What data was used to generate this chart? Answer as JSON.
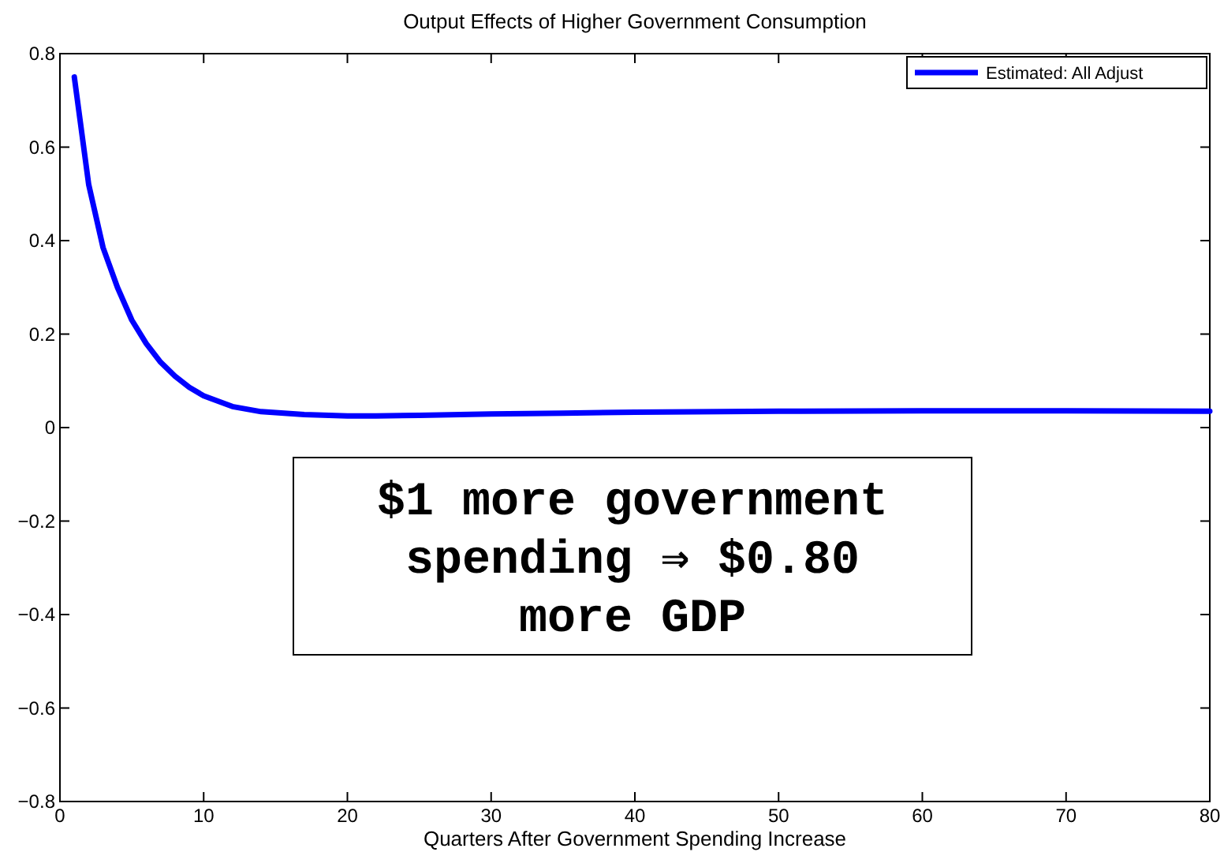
{
  "chart_data": {
    "type": "line",
    "title": "Output Effects of Higher Government Consumption",
    "xlabel": "Quarters After Government Spending Increase",
    "annotations": [
      "$1 more government spending ⇒ $0.80 more GDP"
    ],
    "series": [
      {
        "name": "Estimated: All Adjust",
        "color": "#0000ff",
        "x": [
          1,
          2,
          3,
          4,
          5,
          6,
          7,
          8,
          9,
          10,
          12,
          14,
          17,
          20,
          22,
          25,
          30,
          35,
          40,
          50,
          60,
          70,
          80
        ],
        "values": [
          0.75,
          0.52,
          0.385,
          0.3,
          0.23,
          0.18,
          0.14,
          0.11,
          0.086,
          0.068,
          0.045,
          0.034,
          0.028,
          0.025,
          0.025,
          0.026,
          0.029,
          0.031,
          0.033,
          0.035,
          0.036,
          0.036,
          0.035
        ]
      }
    ],
    "xlim": [
      0,
      80
    ],
    "ylim": [
      -0.8,
      0.8
    ],
    "xticks": [
      0,
      10,
      20,
      30,
      40,
      50,
      60,
      70,
      80
    ],
    "yticks": [
      -0.8,
      -0.6,
      -0.4,
      -0.2,
      0,
      0.2,
      0.4,
      0.6,
      0.8
    ],
    "legend": "top right",
    "grid": false,
    "line_style": "solid",
    "marker": "none"
  }
}
